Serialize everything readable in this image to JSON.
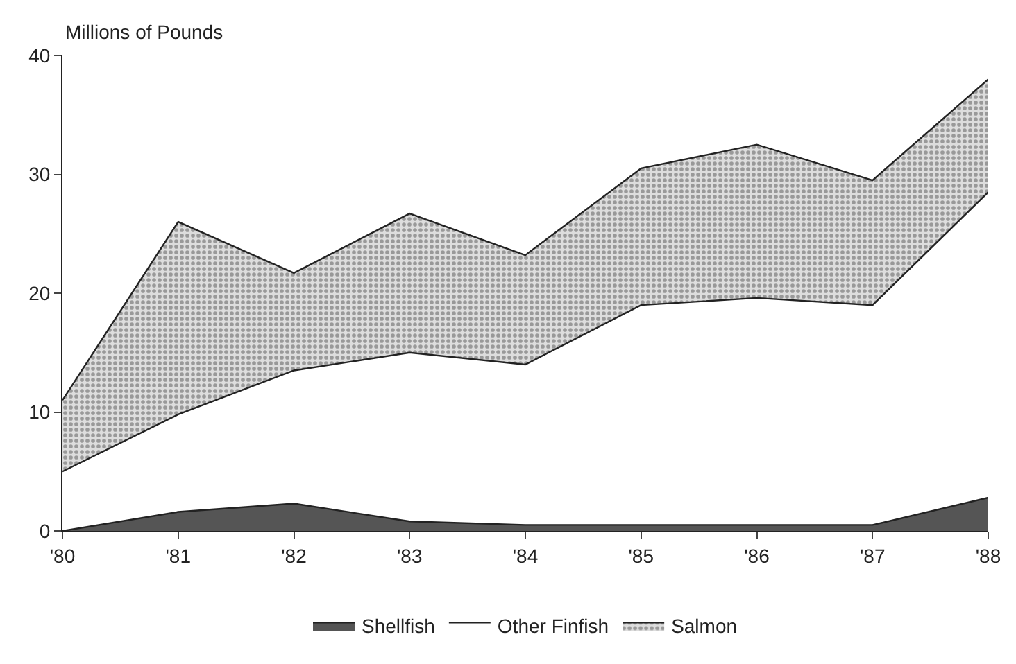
{
  "chart_data": {
    "type": "area",
    "stacked": true,
    "ylabel": "Millions of Pounds",
    "categories": [
      "'80",
      "'81",
      "'82",
      "'83",
      "'84",
      "'85",
      "'86",
      "'87",
      "'88"
    ],
    "series": [
      {
        "name": "Shellfish",
        "color": "#555555",
        "values": [
          0,
          1.6,
          2.3,
          0.8,
          0.5,
          0.5,
          0.5,
          0.5,
          2.8
        ]
      },
      {
        "name": "Other Finfish",
        "color": "#ffffff",
        "values": [
          5,
          8.2,
          11.2,
          14.2,
          13.5,
          18.5,
          19.1,
          18.5,
          25.7
        ]
      },
      {
        "name": "Salmon",
        "color": "#aaaaaa",
        "values": [
          6,
          16.2,
          8.2,
          11.7,
          9.2,
          11.5,
          12.9,
          10.5,
          9.5
        ]
      }
    ],
    "ylim": [
      0,
      40
    ],
    "yticks": [
      0,
      10,
      20,
      30,
      40
    ],
    "legend": "bottom"
  }
}
